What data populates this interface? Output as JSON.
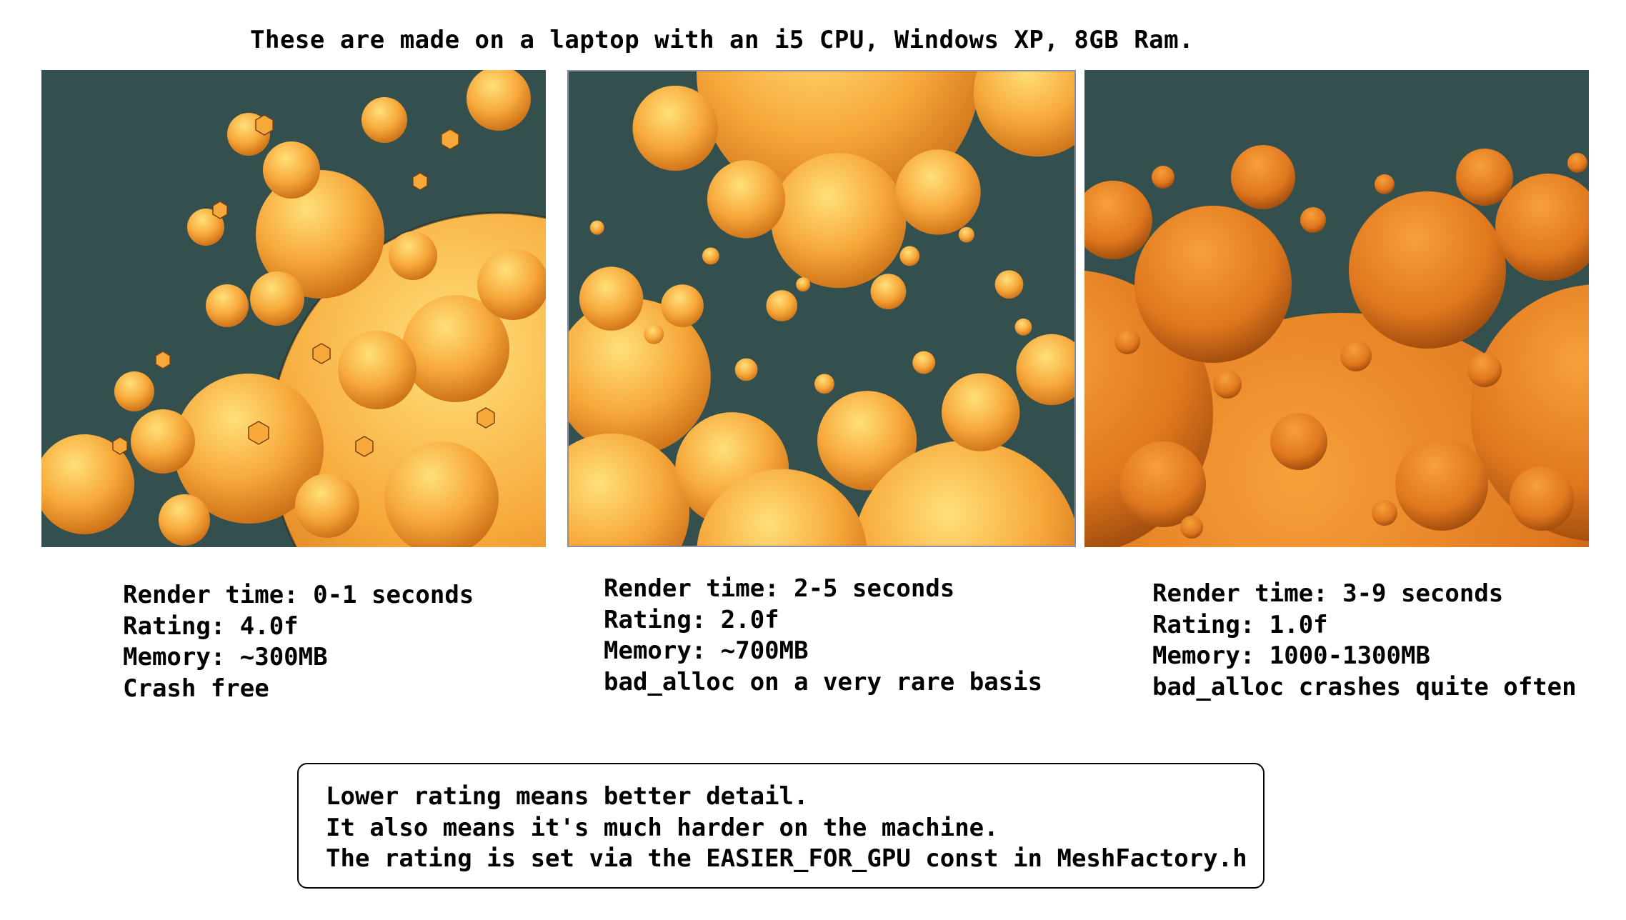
{
  "headline": "These are made on a laptop with an i5 CPU, Windows XP, 8GB Ram.",
  "colors": {
    "background": "#33504f",
    "sphere_light": "#ffd064",
    "sphere_mid": "#f59a2e",
    "sphere_dark": "#c46512"
  },
  "renders": [
    {
      "render_time": "Render time: 0-1 seconds",
      "rating": "Rating: 4.0f",
      "memory": "Memory: ~300MB",
      "note": "Crash free"
    },
    {
      "render_time": "Render time: 2-5 seconds",
      "rating": "Rating: 2.0f",
      "memory": "Memory: ~700MB",
      "note": "bad_alloc on a very rare basis"
    },
    {
      "render_time": "Render time: 3-9 seconds",
      "rating": "Rating: 1.0f",
      "memory": "Memory: 1000-1300MB",
      "note": "bad_alloc crashes quite often"
    }
  ],
  "note_box": {
    "line1": "Lower rating means better detail.",
    "line2": "It also means it's much harder on the machine.",
    "line3": "The rating is set via the EASIER_FOR_GPU const in MeshFactory.h"
  }
}
